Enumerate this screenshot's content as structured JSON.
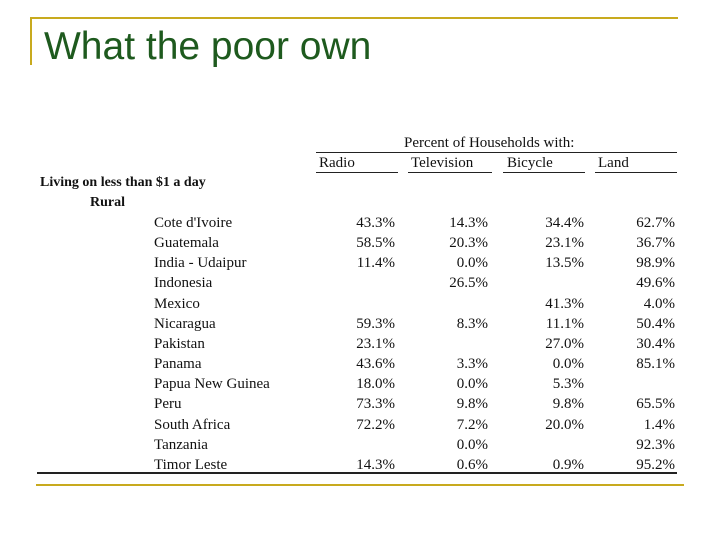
{
  "title": "What the poor own",
  "table": {
    "group_header": "Percent of Households with:",
    "columns": [
      "Radio",
      "Television",
      "Bicycle",
      "Land"
    ],
    "section": "Living on less than $1 a day",
    "subsection": "Rural",
    "rows": [
      {
        "country": "Cote d'Ivoire",
        "values": [
          "43.3%",
          "14.3%",
          "34.4%",
          "62.7%"
        ]
      },
      {
        "country": "Guatemala",
        "values": [
          "58.5%",
          "20.3%",
          "23.1%",
          "36.7%"
        ]
      },
      {
        "country": "India - Udaipur",
        "values": [
          "11.4%",
          "0.0%",
          "13.5%",
          "98.9%"
        ]
      },
      {
        "country": "Indonesia",
        "values": [
          "",
          "26.5%",
          "",
          "49.6%"
        ]
      },
      {
        "country": "Mexico",
        "values": [
          "",
          "",
          "41.3%",
          "4.0%"
        ]
      },
      {
        "country": "Nicaragua",
        "values": [
          "59.3%",
          "8.3%",
          "11.1%",
          "50.4%"
        ]
      },
      {
        "country": "Pakistan",
        "values": [
          "23.1%",
          "",
          "27.0%",
          "30.4%"
        ]
      },
      {
        "country": "Panama",
        "values": [
          "43.6%",
          "3.3%",
          "0.0%",
          "85.1%"
        ]
      },
      {
        "country": "Papua New Guinea",
        "values": [
          "18.0%",
          "0.0%",
          "5.3%",
          ""
        ]
      },
      {
        "country": "Peru",
        "values": [
          "73.3%",
          "9.8%",
          "9.8%",
          "65.5%"
        ]
      },
      {
        "country": "South Africa",
        "values": [
          "72.2%",
          "7.2%",
          "20.0%",
          "1.4%"
        ]
      },
      {
        "country": "Tanzania",
        "values": [
          "",
          "0.0%",
          "",
          "92.3%"
        ]
      },
      {
        "country": "Timor Leste",
        "values": [
          "14.3%",
          "0.6%",
          "0.9%",
          "95.2%"
        ]
      }
    ]
  },
  "colors": {
    "title": "#1e5a1e",
    "frame": "#c8aa1e"
  }
}
